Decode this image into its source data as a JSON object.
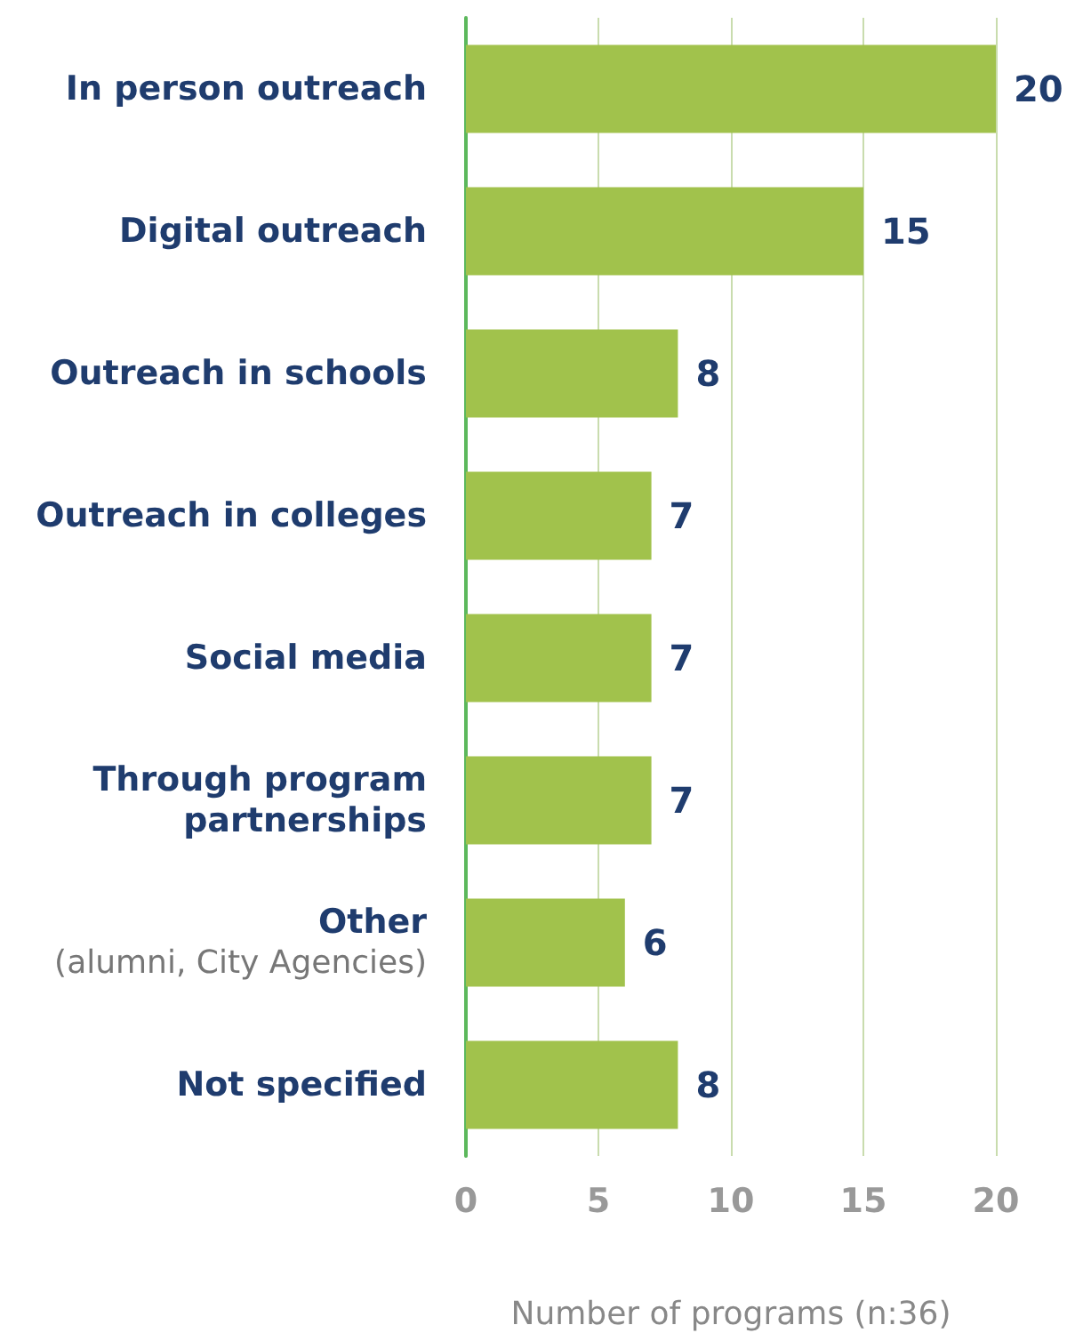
{
  "chart_data": {
    "type": "bar",
    "orientation": "horizontal",
    "categories": [
      "In person outreach",
      "Digital outreach",
      "Outreach in schools",
      "Outreach in colleges",
      "Social media",
      "Through program\npartnerships",
      "Other\n(alumni, City Agencies)",
      "Not specified"
    ],
    "values": [
      20,
      15,
      8,
      7,
      7,
      7,
      6,
      8
    ],
    "color": "#a1c24c",
    "xlabel": "Number of programs (n:36)",
    "xlim": [
      0,
      20
    ],
    "xticks": [
      0,
      5,
      10,
      15,
      20
    ],
    "grid": "x",
    "data_labels": true
  }
}
